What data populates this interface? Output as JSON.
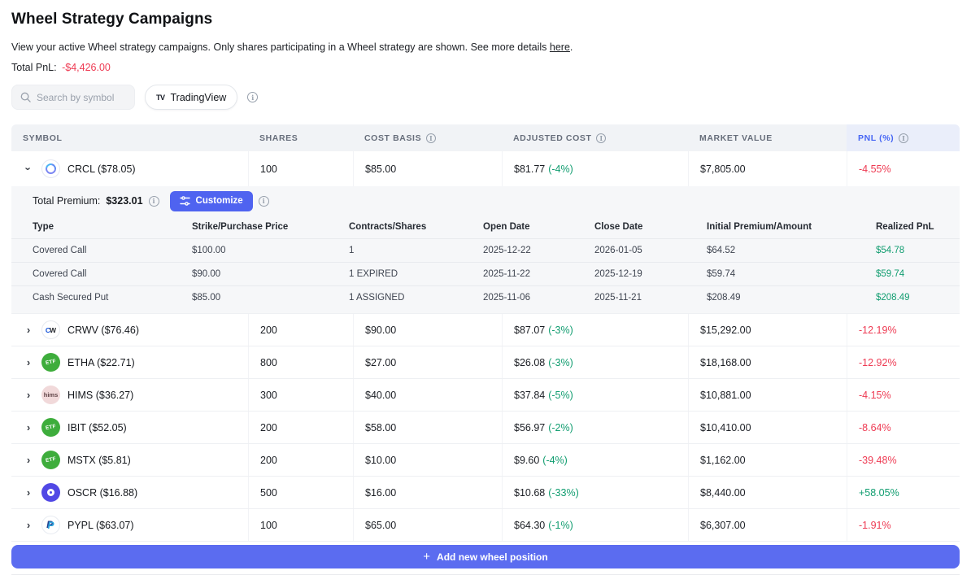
{
  "colors": {
    "accent": "#5b6cf0",
    "accent2": "#4f63f0",
    "red": "#ee3b53",
    "green": "#119d70",
    "blue": "#4565f4"
  },
  "icons": [
    "search-icon",
    "tradingview-logo-icon",
    "info-icon",
    "chevron-down-icon",
    "chevron-right-icon",
    "sliders-icon",
    "plus-icon"
  ],
  "page": {
    "title": "Wheel Strategy Campaigns",
    "description": "View your active Wheel strategy campaigns. Only shares participating in a Wheel strategy are shown. See more details ",
    "description_link": "here",
    "description_end": ".",
    "total_pnl_label": "Total PnL:",
    "total_pnl_value": "-$4,426.00"
  },
  "toolbar": {
    "search_placeholder": "Search by symbol",
    "tradingview_label": "TradingView",
    "tradingview_logo": "TV"
  },
  "table": {
    "headers": [
      "Symbol",
      "Shares",
      "Cost Basis",
      "Adjusted Cost",
      "Market Value",
      "PnL (%)"
    ],
    "rows": [
      {
        "symbol": "CRCL ($78.05)",
        "icon": "crcl",
        "expanded": true,
        "shares": "100",
        "cost_basis": "$85.00",
        "adjusted_cost": "$81.77",
        "adjusted_pct": "(-4%)",
        "market_value": "$7,805.00",
        "pnl": "-4.55%",
        "pnl_positive": false,
        "details": {
          "premium_label": "Total Premium:",
          "premium_value": "$323.01",
          "customize_label": "Customize",
          "headers": [
            "Type",
            "Strike/Purchase Price",
            "Contracts/Shares",
            "Open Date",
            "Close Date",
            "Initial Premium/Amount",
            "Realized PnL"
          ],
          "rows": [
            {
              "type": "Covered Call",
              "strike": "$100.00",
              "contracts": "1",
              "open": "2025-12-22",
              "close": "2026-01-05",
              "premium": "$64.52",
              "realized": "$54.78"
            },
            {
              "type": "Covered Call",
              "strike": "$90.00",
              "contracts": "1 EXPIRED",
              "open": "2025-11-22",
              "close": "2025-12-19",
              "premium": "$59.74",
              "realized": "$59.74"
            },
            {
              "type": "Cash Secured Put",
              "strike": "$85.00",
              "contracts": "1 ASSIGNED",
              "open": "2025-11-06",
              "close": "2025-11-21",
              "premium": "$208.49",
              "realized": "$208.49"
            }
          ]
        }
      },
      {
        "symbol": "CRWV ($76.46)",
        "icon": "crwv",
        "expanded": false,
        "shares": "200",
        "cost_basis": "$90.00",
        "adjusted_cost": "$87.07",
        "adjusted_pct": "(-3%)",
        "market_value": "$15,292.00",
        "pnl": "-12.19%",
        "pnl_positive": false
      },
      {
        "symbol": "ETHA ($22.71)",
        "icon": "etf",
        "expanded": false,
        "shares": "800",
        "cost_basis": "$27.00",
        "adjusted_cost": "$26.08",
        "adjusted_pct": "(-3%)",
        "market_value": "$18,168.00",
        "pnl": "-12.92%",
        "pnl_positive": false
      },
      {
        "symbol": "HIMS ($36.27)",
        "icon": "hims",
        "expanded": false,
        "shares": "300",
        "cost_basis": "$40.00",
        "adjusted_cost": "$37.84",
        "adjusted_pct": "(-5%)",
        "market_value": "$10,881.00",
        "pnl": "-4.15%",
        "pnl_positive": false
      },
      {
        "symbol": "IBIT ($52.05)",
        "icon": "etf",
        "expanded": false,
        "shares": "200",
        "cost_basis": "$58.00",
        "adjusted_cost": "$56.97",
        "adjusted_pct": "(-2%)",
        "market_value": "$10,410.00",
        "pnl": "-8.64%",
        "pnl_positive": false
      },
      {
        "symbol": "MSTX ($5.81)",
        "icon": "etf",
        "expanded": false,
        "shares": "200",
        "cost_basis": "$10.00",
        "adjusted_cost": "$9.60",
        "adjusted_pct": "(-4%)",
        "market_value": "$1,162.00",
        "pnl": "-39.48%",
        "pnl_positive": false
      },
      {
        "symbol": "OSCR ($16.88)",
        "icon": "oscr",
        "expanded": false,
        "shares": "500",
        "cost_basis": "$16.00",
        "adjusted_cost": "$10.68",
        "adjusted_pct": "(-33%)",
        "market_value": "$8,440.00",
        "pnl": "+58.05%",
        "pnl_positive": true
      },
      {
        "symbol": "PYPL ($63.07)",
        "icon": "pypl",
        "expanded": false,
        "shares": "100",
        "cost_basis": "$65.00",
        "adjusted_cost": "$64.30",
        "adjusted_pct": "(-1%)",
        "market_value": "$6,307.00",
        "pnl": "-1.91%",
        "pnl_positive": false
      }
    ]
  },
  "icon_labels": {
    "crwv": {
      "l1": "C",
      "l2": "W"
    },
    "etf": {
      "lab": "ETF"
    },
    "hims": {
      "lab": "hims"
    },
    "pypl": {
      "lab": "P"
    }
  },
  "footer": {
    "plus": "+",
    "label": "Add new wheel position"
  }
}
